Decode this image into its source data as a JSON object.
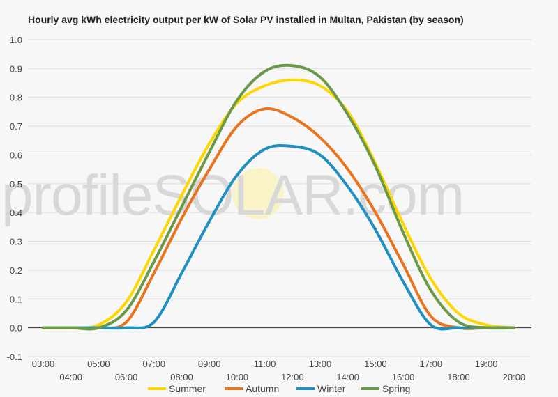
{
  "chart_data": {
    "type": "line",
    "title": "Hourly avg kWh electricity output per kW of Solar PV installed in Multan, Pakistan (by season)",
    "xlabel": "",
    "ylabel": "",
    "ylim": [
      -0.1,
      1.0
    ],
    "yticks": [
      "1.0",
      "0.9",
      "0.8",
      "0.7",
      "0.6",
      "0.5",
      "0.4",
      "0.3",
      "0.2",
      "0.1",
      "0.0",
      "-0.1"
    ],
    "ytick_values": [
      1.0,
      0.9,
      0.8,
      0.7,
      0.6,
      0.5,
      0.4,
      0.3,
      0.2,
      0.1,
      0.0,
      -0.1
    ],
    "categories": [
      "03:00",
      "04:00",
      "05:00",
      "06:00",
      "07:00",
      "08:00",
      "09:00",
      "10:00",
      "11:00",
      "12:00",
      "13:00",
      "14:00",
      "15:00",
      "16:00",
      "17:00",
      "18:00",
      "19:00",
      "20:00"
    ],
    "grid": true,
    "legend_position": "bottom",
    "series": [
      {
        "name": "Summer",
        "color": "#ffd700",
        "values": [
          0.0,
          0.0,
          0.01,
          0.09,
          0.27,
          0.46,
          0.64,
          0.78,
          0.84,
          0.86,
          0.84,
          0.75,
          0.57,
          0.36,
          0.17,
          0.05,
          0.01,
          0.0
        ]
      },
      {
        "name": "Autumn",
        "color": "#e8741f",
        "values": [
          0.0,
          0.0,
          0.0,
          0.02,
          0.19,
          0.38,
          0.55,
          0.7,
          0.76,
          0.73,
          0.66,
          0.55,
          0.4,
          0.22,
          0.04,
          0.0,
          0.0,
          0.0
        ]
      },
      {
        "name": "Winter",
        "color": "#2090c0",
        "values": [
          0.0,
          0.0,
          0.0,
          0.0,
          0.02,
          0.19,
          0.37,
          0.53,
          0.62,
          0.63,
          0.6,
          0.49,
          0.34,
          0.16,
          0.01,
          0.0,
          0.0,
          0.0
        ]
      },
      {
        "name": "Spring",
        "color": "#6a9a48",
        "values": [
          0.0,
          0.0,
          0.0,
          0.06,
          0.23,
          0.42,
          0.61,
          0.79,
          0.89,
          0.91,
          0.87,
          0.74,
          0.56,
          0.33,
          0.13,
          0.02,
          0.0,
          0.0
        ]
      }
    ]
  },
  "watermark": "profileSOLAR.com"
}
